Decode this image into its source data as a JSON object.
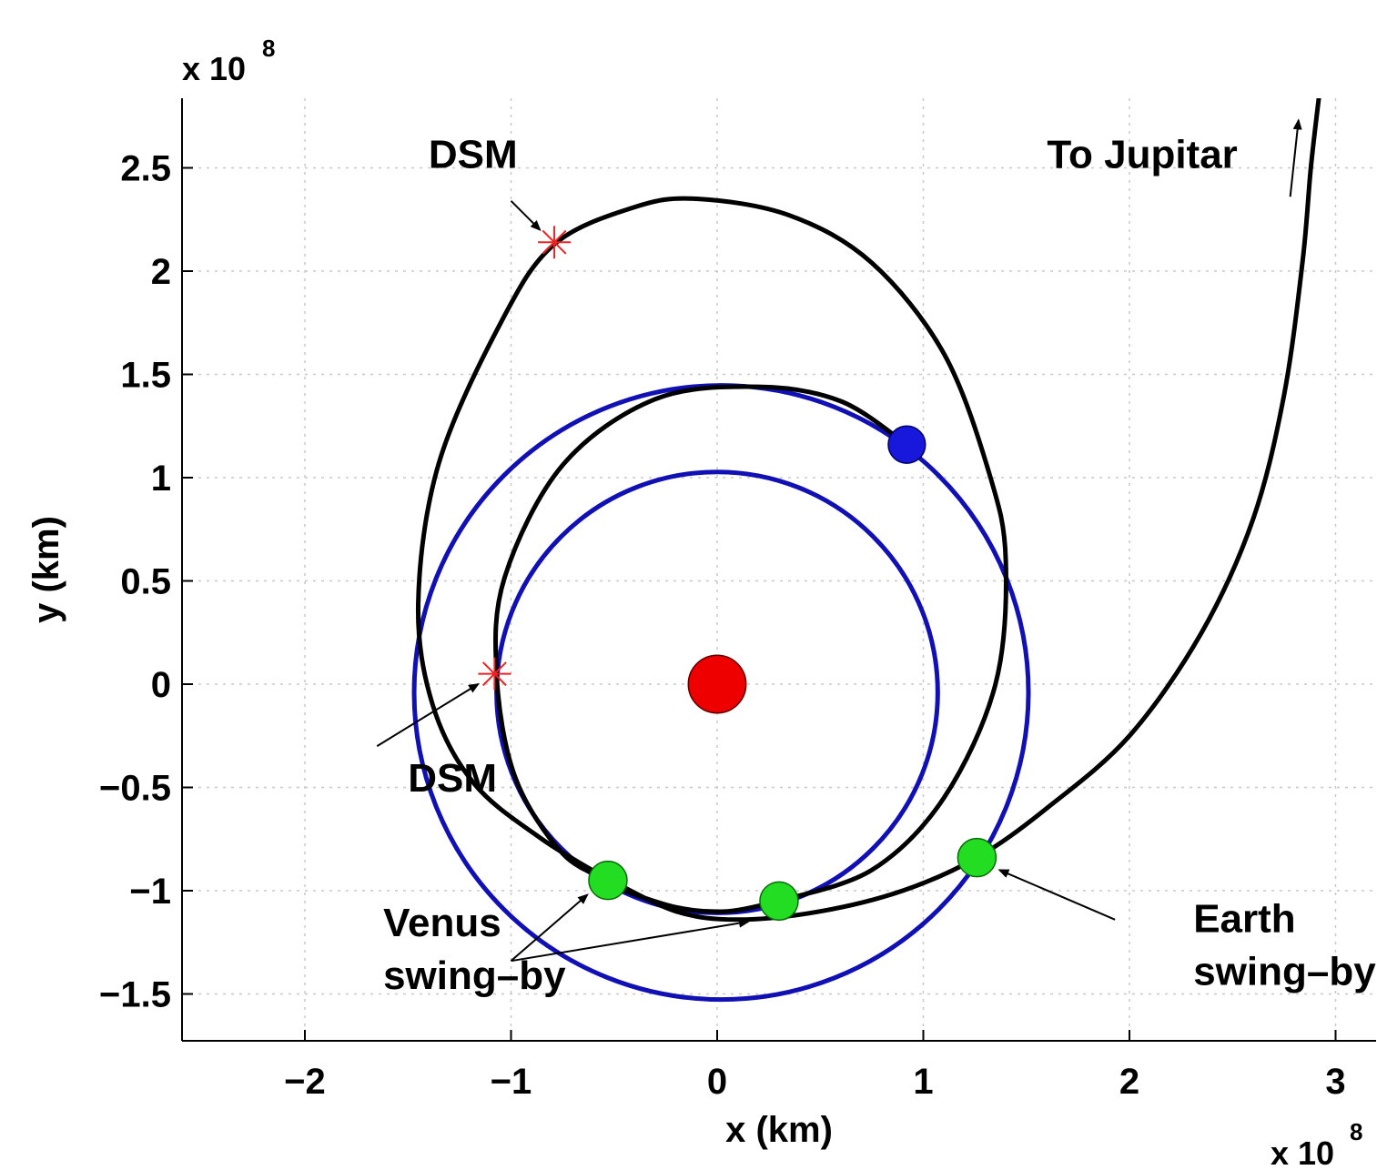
{
  "chart_data": {
    "type": "scatter",
    "xlabel": "x (km)",
    "ylabel": "y (km)",
    "x_exponent": {
      "base": "x 10",
      "power": "8"
    },
    "y_exponent": {
      "base": "x 10",
      "power": "8"
    },
    "xlim": [
      -2.6,
      3.2
    ],
    "ylim": [
      -1.73,
      2.83
    ],
    "x_ticks": [
      -2,
      -1,
      0,
      1,
      2,
      3
    ],
    "x_tick_labels": [
      "−2",
      "−1",
      "0",
      "1",
      "2",
      "3"
    ],
    "y_ticks": [
      -1.5,
      -1,
      -0.5,
      0,
      0.5,
      1,
      1.5,
      2,
      2.5
    ],
    "y_tick_labels": [
      "−1.5",
      "−1",
      "−0.5",
      "0",
      "0.5",
      "1",
      "1.5",
      "2",
      "2.5"
    ],
    "grid": true,
    "colors": {
      "trajectory": "#000000",
      "planet_orbit": "#1010b4",
      "sun": "#ee0000",
      "swing_by": "#22dd22",
      "end_marker": "#1818dd",
      "dsm": "#ee2222"
    },
    "orbits": [
      {
        "center": [
          0.02,
          -0.04
        ],
        "radius": 1.49
      },
      {
        "center": [
          0.0,
          -0.04
        ],
        "radius": 1.07
      }
    ],
    "trajectory": {
      "inner_loop": [
        [
          0.92,
          1.16
        ],
        [
          0.6,
          1.37
        ],
        [
          0.2,
          1.44
        ],
        [
          -0.3,
          1.38
        ],
        [
          -0.75,
          1.06
        ],
        [
          -1.03,
          0.52
        ],
        [
          -1.07,
          0.05
        ],
        [
          -0.98,
          -0.45
        ],
        [
          -0.75,
          -0.82
        ],
        [
          -0.52,
          -0.95
        ]
      ],
      "outer_loop": [
        [
          -0.52,
          -0.95
        ],
        [
          -0.85,
          -0.75
        ],
        [
          -1.18,
          -0.48
        ],
        [
          -1.38,
          -0.1
        ],
        [
          -1.45,
          0.4
        ],
        [
          -1.35,
          1.07
        ],
        [
          -1.05,
          1.75
        ],
        [
          -0.79,
          2.13
        ],
        [
          -0.4,
          2.31
        ],
        [
          -0.1,
          2.35
        ],
        [
          0.35,
          2.27
        ],
        [
          0.75,
          2.04
        ],
        [
          1.1,
          1.6
        ],
        [
          1.32,
          1.02
        ],
        [
          1.4,
          0.6
        ],
        [
          1.35,
          0.0
        ],
        [
          1.1,
          -0.55
        ],
        [
          0.75,
          -0.9
        ],
        [
          0.3,
          -1.05
        ]
      ],
      "final_arc": [
        [
          0.3,
          -1.05
        ],
        [
          0.05,
          -1.1
        ],
        [
          -0.2,
          -1.08
        ],
        [
          -0.5,
          -0.98
        ],
        [
          -0.52,
          -0.95
        ],
        [
          -0.2,
          -1.1
        ],
        [
          0.1,
          -1.14
        ],
        [
          0.5,
          -1.1
        ],
        [
          0.9,
          -1.0
        ],
        [
          1.26,
          -0.84
        ],
        [
          1.6,
          -0.6
        ],
        [
          2.0,
          -0.25
        ],
        [
          2.35,
          0.25
        ],
        [
          2.6,
          0.8
        ],
        [
          2.75,
          1.4
        ],
        [
          2.84,
          2.05
        ],
        [
          2.88,
          2.5
        ],
        [
          2.92,
          2.85
        ]
      ]
    },
    "sun": {
      "x": 0.0,
      "y": 0.0,
      "radius": 0.14
    },
    "end_marker": {
      "x": 0.92,
      "y": 1.16,
      "radius": 0.09
    },
    "swing_by_points": [
      {
        "x": -0.53,
        "y": -0.95
      },
      {
        "x": 0.3,
        "y": -1.05
      },
      {
        "x": 1.26,
        "y": -0.84
      }
    ],
    "dsm_points": [
      {
        "x": -0.79,
        "y": 2.14
      },
      {
        "x": -1.08,
        "y": 0.05
      }
    ],
    "annotations": [
      {
        "id": "dsm-top",
        "text": "DSM",
        "at": [
          -1.4,
          2.5
        ],
        "arrow_from": [
          -1.0,
          2.34
        ],
        "arrow_to": [
          -0.86,
          2.2
        ]
      },
      {
        "id": "dsm-mid",
        "text": "DSM",
        "at": [
          -1.5,
          -0.52
        ],
        "arrow_from": [
          -1.65,
          -0.3
        ],
        "arrow_to": [
          -1.16,
          0.0
        ]
      },
      {
        "id": "venus",
        "text": "Venus",
        "text2": "swing–by",
        "at": [
          -1.62,
          -1.22
        ],
        "arrow_from": [
          -1.0,
          -1.34
        ],
        "arrow_to": [
          -0.63,
          -1.02
        ],
        "arrow2_to": [
          0.15,
          -1.15
        ]
      },
      {
        "id": "earth",
        "text": "Earth",
        "text2": "swing–by",
        "at": [
          2.31,
          -1.2
        ],
        "arrow_from": [
          1.93,
          -1.14
        ],
        "arrow_to": [
          1.37,
          -0.9
        ]
      },
      {
        "id": "jupiter",
        "text": "To Jupitar",
        "at": [
          1.6,
          2.5
        ],
        "arrow_from": [
          2.78,
          2.36
        ],
        "arrow_to": [
          2.82,
          2.73
        ]
      }
    ]
  }
}
